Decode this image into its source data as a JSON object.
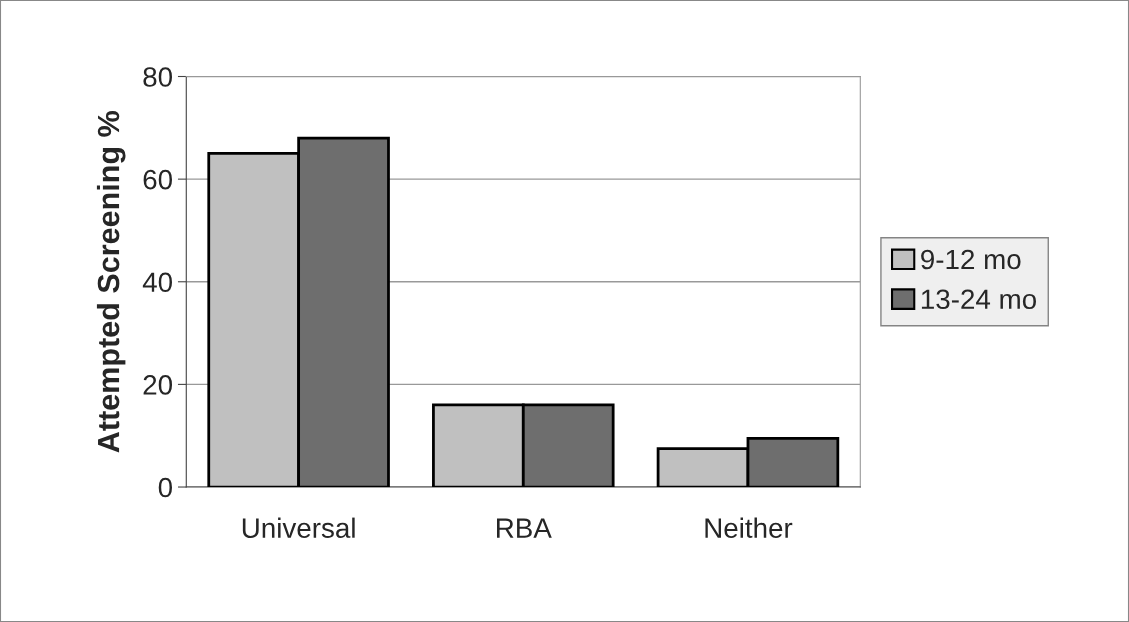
{
  "chart_data": {
    "type": "bar",
    "ylabel": "Attempted Screening %",
    "categories": [
      "Universal",
      "RBA",
      "Neither"
    ],
    "series": [
      {
        "name": "9-12 mo",
        "color": "#c0c0c0",
        "values": [
          65,
          16,
          7.5
        ]
      },
      {
        "name": "13-24 mo",
        "color": "#6e6e6e",
        "values": [
          68,
          16,
          9.5
        ]
      }
    ],
    "ylim": [
      0,
      80
    ],
    "yticks": [
      0,
      20,
      40,
      60,
      80
    ],
    "grid": "y",
    "legend": "right"
  }
}
